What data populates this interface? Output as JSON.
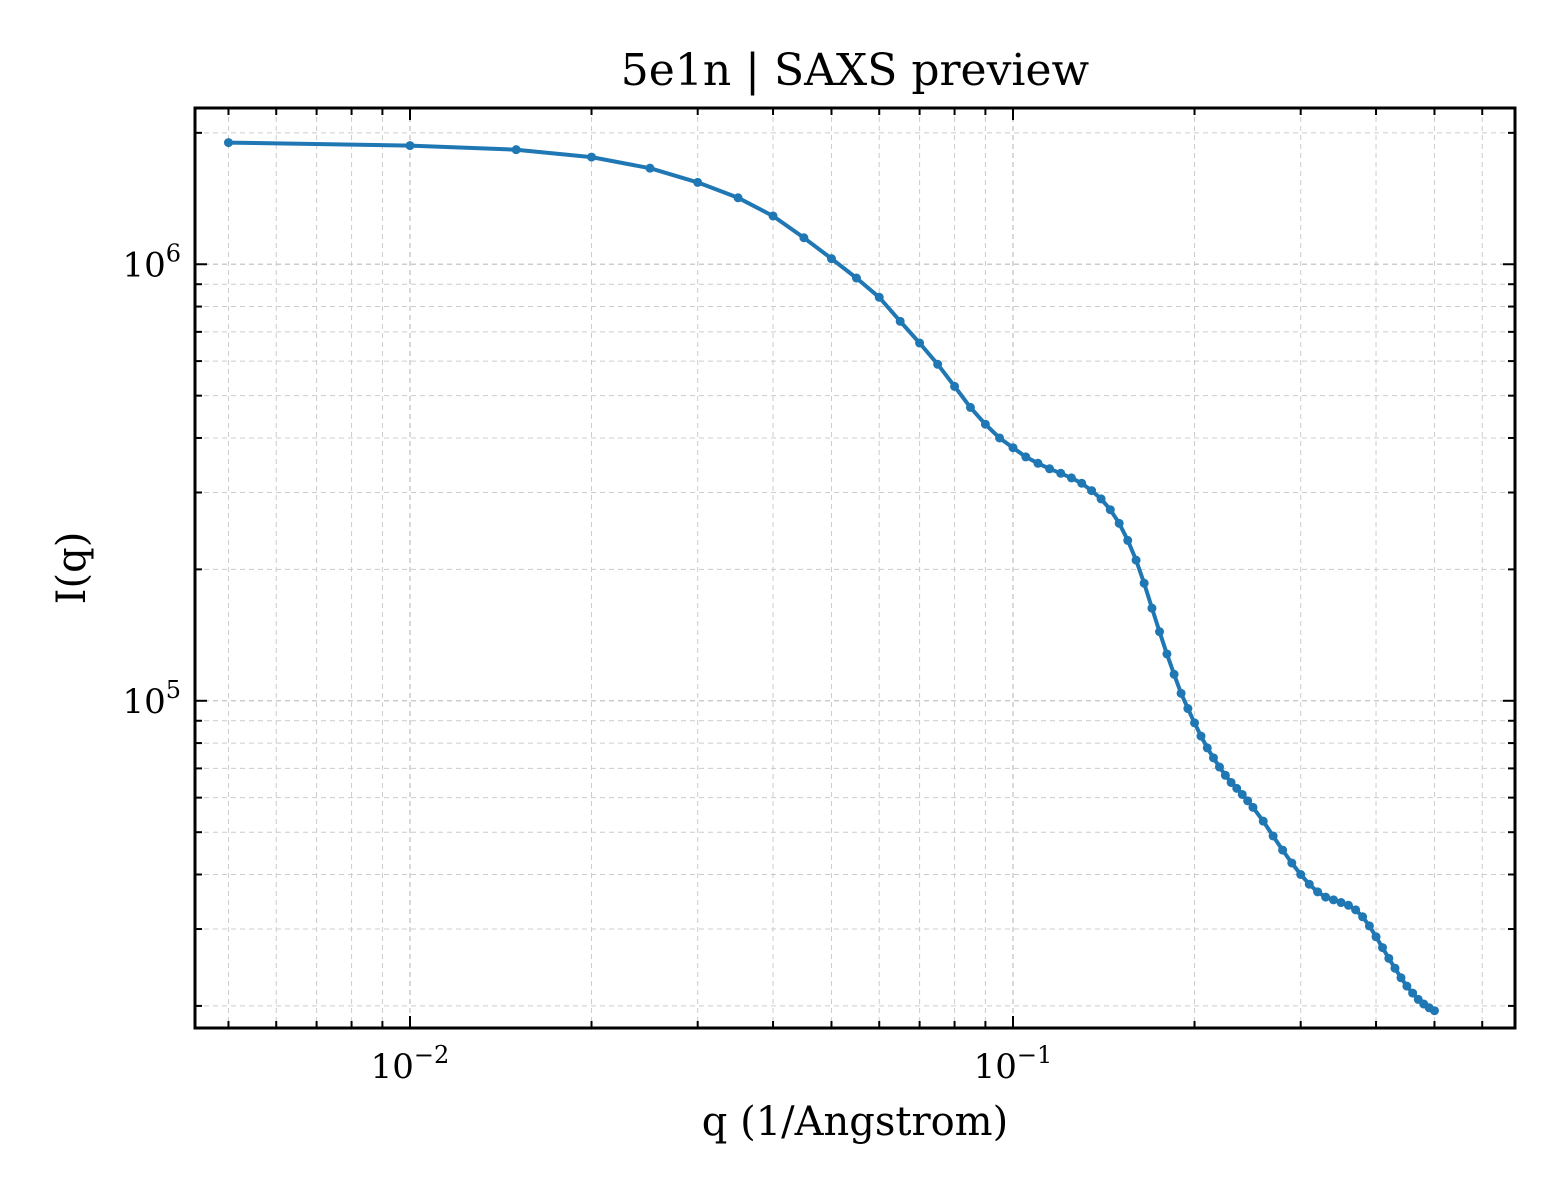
{
  "chart_data": {
    "type": "line",
    "title": "5e1n | SAXS preview",
    "xlabel": "q (1/Angstrom)",
    "ylabel": "I(q)",
    "xscale": "log",
    "yscale": "log",
    "xlim": [
      0.0044,
      0.68
    ],
    "ylim": [
      17800,
      2280000
    ],
    "grid": true,
    "x_ticks": [
      {
        "value": 0.01,
        "base": "10",
        "exp": "−2"
      },
      {
        "value": 0.1,
        "base": "10",
        "exp": "−1"
      }
    ],
    "y_ticks": [
      {
        "value": 100000,
        "base": "10",
        "exp": "5"
      },
      {
        "value": 1000000,
        "base": "10",
        "exp": "6"
      }
    ],
    "series": [
      {
        "color": "#1f77b4",
        "x": [
          0.005,
          0.01,
          0.015,
          0.02,
          0.025,
          0.03,
          0.035,
          0.04,
          0.045,
          0.05,
          0.055,
          0.06,
          0.065,
          0.07,
          0.075,
          0.08,
          0.085,
          0.09,
          0.095,
          0.1,
          0.105,
          0.11,
          0.115,
          0.12,
          0.125,
          0.13,
          0.135,
          0.14,
          0.145,
          0.15,
          0.155,
          0.16,
          0.165,
          0.17,
          0.175,
          0.18,
          0.185,
          0.19,
          0.195,
          0.2,
          0.205,
          0.21,
          0.215,
          0.22,
          0.225,
          0.23,
          0.235,
          0.24,
          0.245,
          0.25,
          0.26,
          0.27,
          0.28,
          0.29,
          0.3,
          0.31,
          0.32,
          0.33,
          0.34,
          0.35,
          0.36,
          0.37,
          0.38,
          0.39,
          0.4,
          0.41,
          0.42,
          0.43,
          0.44,
          0.45,
          0.46,
          0.47,
          0.48,
          0.49,
          0.5
        ],
        "y": [
          1900000,
          1870000,
          1830000,
          1760000,
          1660000,
          1540000,
          1420000,
          1290000,
          1150000,
          1030000,
          930000,
          840000,
          740000,
          660000,
          590000,
          525000,
          470000,
          430000,
          400000,
          380000,
          362000,
          350000,
          340000,
          332000,
          324000,
          315000,
          303000,
          290000,
          274000,
          255000,
          233000,
          210000,
          186000,
          163000,
          144000,
          128000,
          115000,
          104000,
          96000,
          89000,
          83000,
          78000,
          74000,
          70500,
          67500,
          65000,
          63000,
          61000,
          59000,
          57000,
          53000,
          49000,
          45500,
          42500,
          40000,
          38000,
          36500,
          35500,
          35000,
          34500,
          34000,
          33200,
          32000,
          30500,
          28800,
          27200,
          25700,
          24400,
          23200,
          22200,
          21400,
          20700,
          20200,
          19800,
          19500
        ]
      }
    ]
  }
}
